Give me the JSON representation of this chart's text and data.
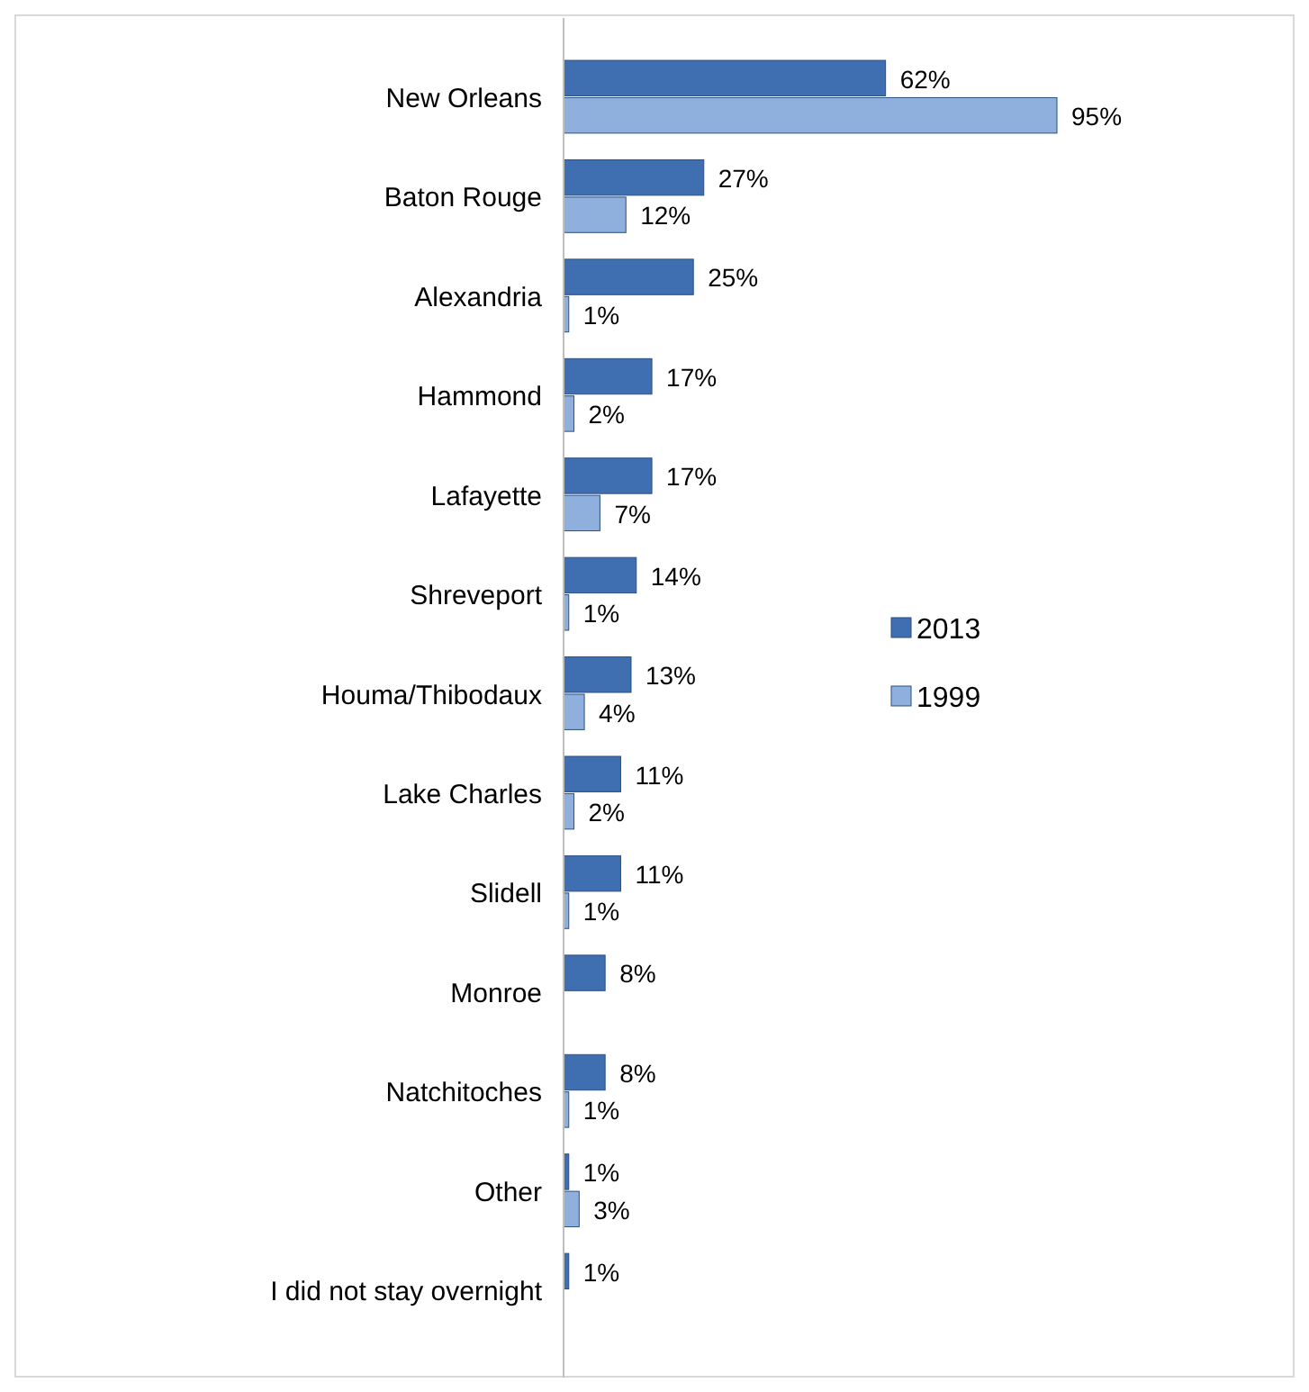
{
  "chart_data": {
    "type": "bar",
    "orientation": "horizontal",
    "legend": "right",
    "categories": [
      "New Orleans",
      "Baton Rouge",
      "Alexandria",
      "Hammond",
      "Lafayette",
      "Shreveport",
      "Houma/Thibodaux",
      "Lake Charles",
      "Slidell",
      "Monroe",
      "Natchitoches",
      "Other",
      "I did not stay overnight"
    ],
    "series": [
      {
        "name": "2013",
        "color": "#3f6fb0",
        "values": [
          62,
          27,
          25,
          17,
          17,
          14,
          13,
          11,
          11,
          8,
          8,
          1,
          1
        ],
        "value_labels": [
          "62%",
          "27%",
          "25%",
          "17%",
          "17%",
          "14%",
          "13%",
          "11%",
          "11%",
          "8%",
          "8%",
          "1%",
          "1%"
        ]
      },
      {
        "name": "1999",
        "color": "#8fb0dc",
        "values": [
          95,
          12,
          1,
          2,
          7,
          1,
          4,
          2,
          1,
          null,
          1,
          3,
          null
        ],
        "value_labels": [
          "95%",
          "12%",
          "1%",
          "2%",
          "7%",
          "1%",
          "4%",
          "2%",
          "1%",
          null,
          "1%",
          "3%",
          null
        ]
      }
    ]
  }
}
